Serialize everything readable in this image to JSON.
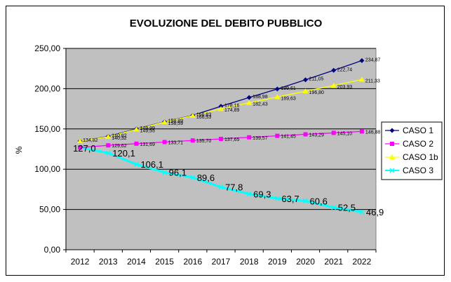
{
  "chart_data": {
    "type": "line",
    "title": "EVOLUZIONE DEL DEBITO PUBBLICO",
    "xlabel": "",
    "ylabel": "%",
    "ylim": [
      0,
      250
    ],
    "yticks": [
      0,
      50,
      100,
      150,
      200,
      250
    ],
    "ytick_labels": [
      "0,00",
      "50,00",
      "100,00",
      "150,00",
      "200,00",
      "250,00"
    ],
    "categories": [
      "2012",
      "2013",
      "2014",
      "2015",
      "2016",
      "2017",
      "2018",
      "2019",
      "2020",
      "2021",
      "2022"
    ],
    "series": [
      {
        "name": "CASO 1",
        "color": "#000080",
        "marker": "diamond",
        "label_size": "small",
        "values": [
          134.82,
          140.82,
          149.99,
          158.89,
          166.83,
          178.16,
          188.98,
          199.61,
          211.05,
          222.74,
          234.87
        ],
        "labels": [
          "",
          "140,82",
          "149,99",
          "158,89",
          "166,83",
          "178,16",
          "188,98",
          "199,61",
          "211,05",
          "222,74",
          "234,87"
        ]
      },
      {
        "name": "CASO 2",
        "color": "#ff00ff",
        "marker": "square",
        "label_size": "small",
        "values": [
          127.0,
          129.62,
          131.69,
          133.71,
          135.7,
          137.65,
          139.57,
          141.45,
          143.29,
          145.1,
          146.88
        ],
        "labels": [
          "",
          "129,62",
          "131,69",
          "133,71",
          "135,70",
          "137,65",
          "139,57",
          "141,45",
          "143,29",
          "145,10",
          "146,88"
        ]
      },
      {
        "name": "CASO 1b",
        "color": "#ffff00",
        "marker": "triangle",
        "label_size": "small",
        "values": [
          134.82,
          140.32,
          149.55,
          158.59,
          166.53,
          174.89,
          182.43,
          189.63,
          196.8,
          203.93,
          211.33
        ],
        "labels": [
          "134,82",
          "140,32",
          "149,55",
          "158,59",
          "166,53",
          "174,89",
          "182,43",
          "189,63",
          "196,80",
          "203,93",
          "211,33"
        ]
      },
      {
        "name": "CASO 3",
        "color": "#00ffff",
        "marker": "x",
        "label_size": "big",
        "values": [
          127.0,
          120.1,
          106.1,
          96.1,
          89.6,
          77.8,
          69.3,
          63.7,
          60.6,
          52.5,
          46.9
        ],
        "labels": [
          "127,0",
          "120,1",
          "106,1",
          "96,1",
          "89,6",
          "77,8",
          "69,3",
          "63,7",
          "60,6",
          "52,5",
          "46,9"
        ]
      }
    ],
    "legend_position": "right"
  }
}
